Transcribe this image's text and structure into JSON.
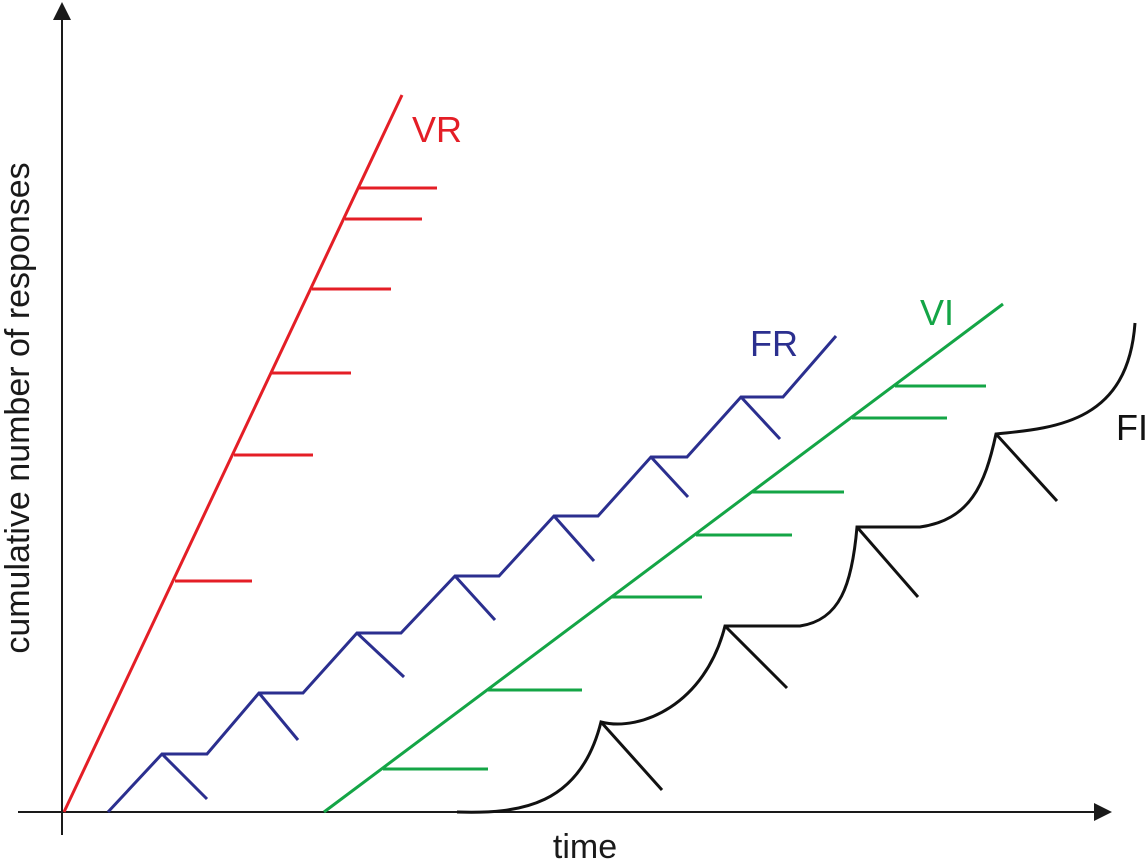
{
  "diagram": {
    "xlabel": "time",
    "ylabel": "cumulative number of responses",
    "series": [
      {
        "id": "vr",
        "label": "VR",
        "color": "#e41e26"
      },
      {
        "id": "fr",
        "label": "FR",
        "color": "#2b2f8f"
      },
      {
        "id": "vi",
        "label": "VI",
        "color": "#14a546"
      },
      {
        "id": "fi",
        "label": "FI",
        "color": "#111111"
      }
    ]
  }
}
